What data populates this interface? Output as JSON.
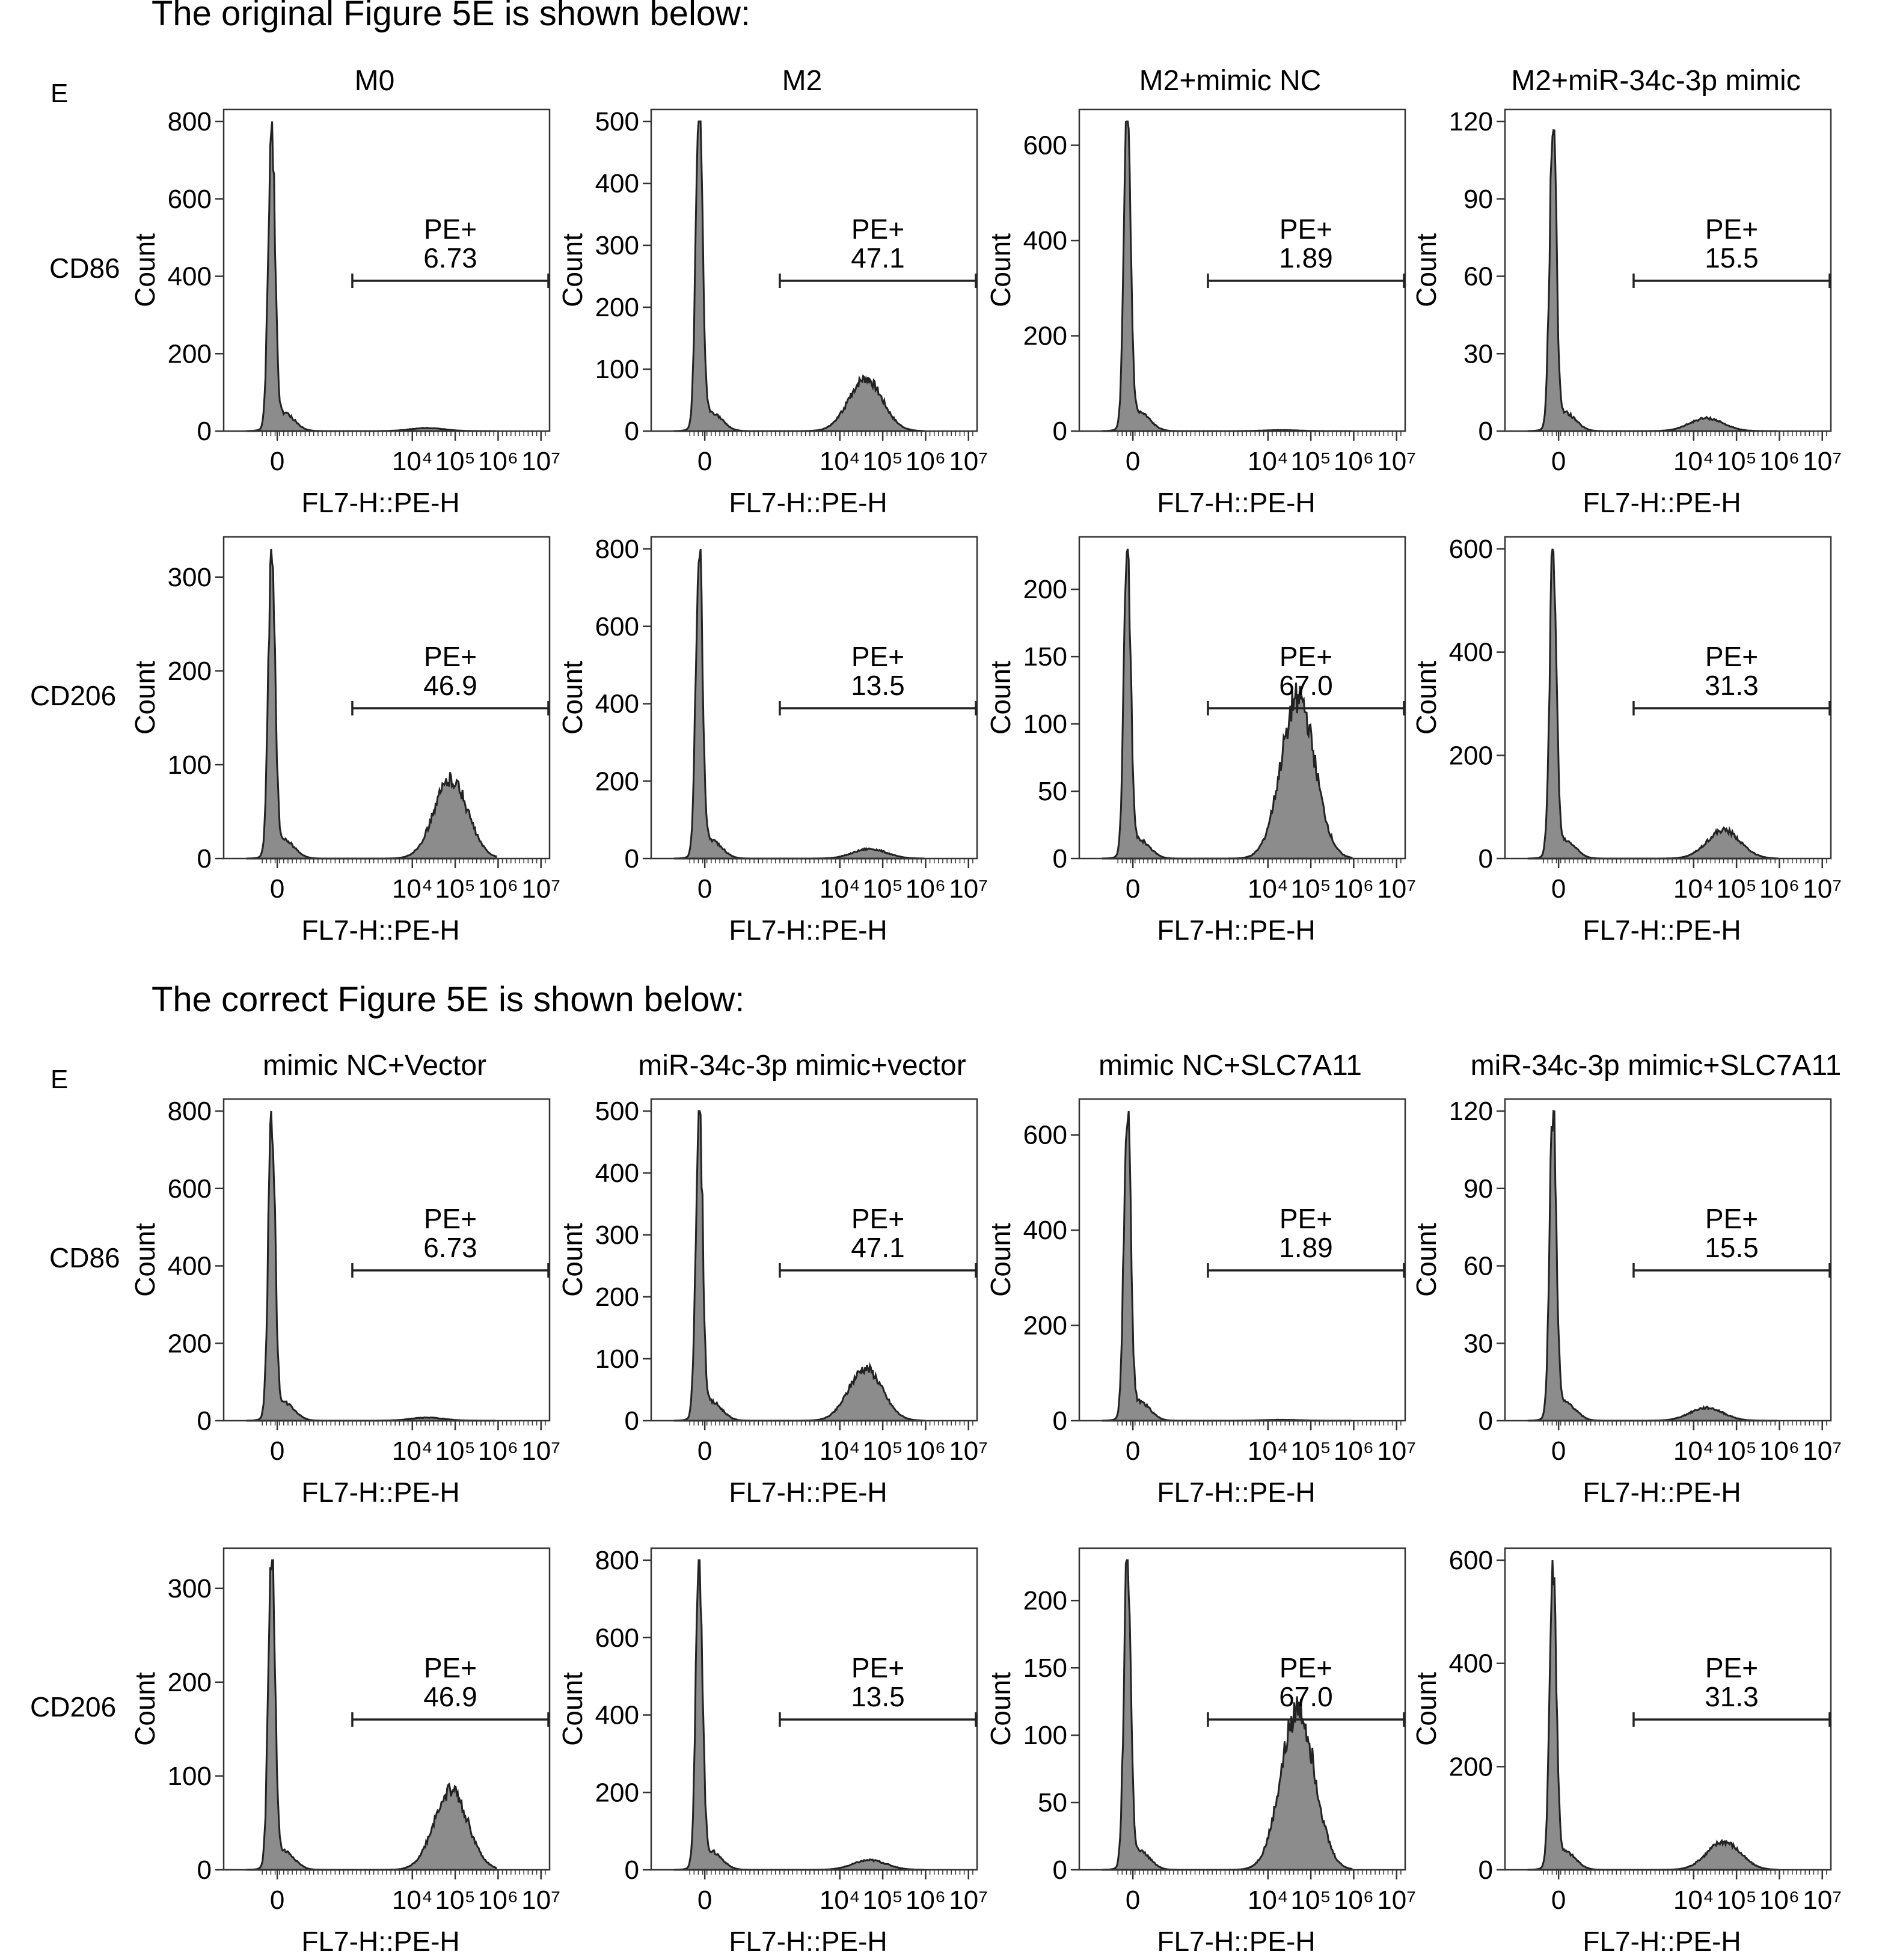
{
  "sections": [
    {
      "heading": "The original Figure 5E is shown below:",
      "panel_tag": "E",
      "columns": [
        "M0",
        "M2",
        "M2+mimic NC",
        "M2+miR-34c-3p mimic"
      ]
    },
    {
      "heading": "The correct Figure 5E is shown below:",
      "panel_tag": "E",
      "columns": [
        "mimic NC+Vector",
        "miR-34c-3p mimic+vector",
        "mimic NC+SLC7A11",
        "miR-34c-3p mimic+SLC7A11"
      ]
    }
  ],
  "row_labels": [
    "CD86",
    "CD206"
  ],
  "xlabel": "FL7-H::PE-H",
  "ylabel": "Count",
  "x_ticks": [
    "0",
    "10⁴",
    "10⁵",
    "10⁶",
    "10⁷"
  ],
  "gate": {
    "label": "PE+"
  },
  "colors": {
    "fill": "#8c8c8c",
    "stroke": "#222222",
    "frame": "#333333"
  },
  "chart_data": {
    "type": "histogram",
    "description_of_x": "log-scale fluorescence intensity (PE-H)",
    "rows": [
      {
        "marker": "CD86",
        "panels": [
          {
            "ylim": [
              0,
              800
            ],
            "y_ticks": [
              0,
              200,
              400,
              600,
              800
            ],
            "peak": 780,
            "pct_positive": "6.73",
            "second_peak": 8,
            "second_center": 4.35
          },
          {
            "ylim": [
              0,
              500
            ],
            "y_ticks": [
              0,
              100,
              200,
              300,
              400,
              500
            ],
            "peak": 510,
            "pct_positive": "47.1",
            "second_peak": 85,
            "second_center": 4.6
          },
          {
            "ylim": [
              0,
              650
            ],
            "y_ticks": [
              0,
              200,
              400,
              600
            ],
            "peak": 660,
            "pct_positive": "1.89",
            "second_peak": 2,
            "second_center": 4.3
          },
          {
            "ylim": [
              0,
              120
            ],
            "y_ticks": [
              0,
              30,
              60,
              90,
              120
            ],
            "peak": 118,
            "pct_positive": "15.5",
            "second_peak": 5,
            "second_center": 4.3
          }
        ]
      },
      {
        "marker": "CD206",
        "panels": [
          {
            "ylim": [
              0,
              330
            ],
            "y_ticks": [
              0,
              100,
              200,
              300
            ],
            "peak": 330,
            "pct_positive": "46.9",
            "second_peak": 85,
            "second_center": 4.9
          },
          {
            "ylim": [
              0,
              800
            ],
            "y_ticks": [
              0,
              200,
              400,
              600,
              800
            ],
            "peak": 790,
            "pct_positive": "13.5",
            "second_peak": 25,
            "second_center": 4.7
          },
          {
            "ylim": [
              0,
              230
            ],
            "y_ticks": [
              0,
              50,
              100,
              150,
              200
            ],
            "peak": 230,
            "pct_positive": "67.0",
            "second_peak": 120,
            "second_center": 4.7
          },
          {
            "ylim": [
              0,
              600
            ],
            "y_ticks": [
              0,
              200,
              400,
              600
            ],
            "peak": 590,
            "pct_positive": "31.3",
            "second_peak": 55,
            "second_center": 4.7
          }
        ]
      }
    ]
  }
}
